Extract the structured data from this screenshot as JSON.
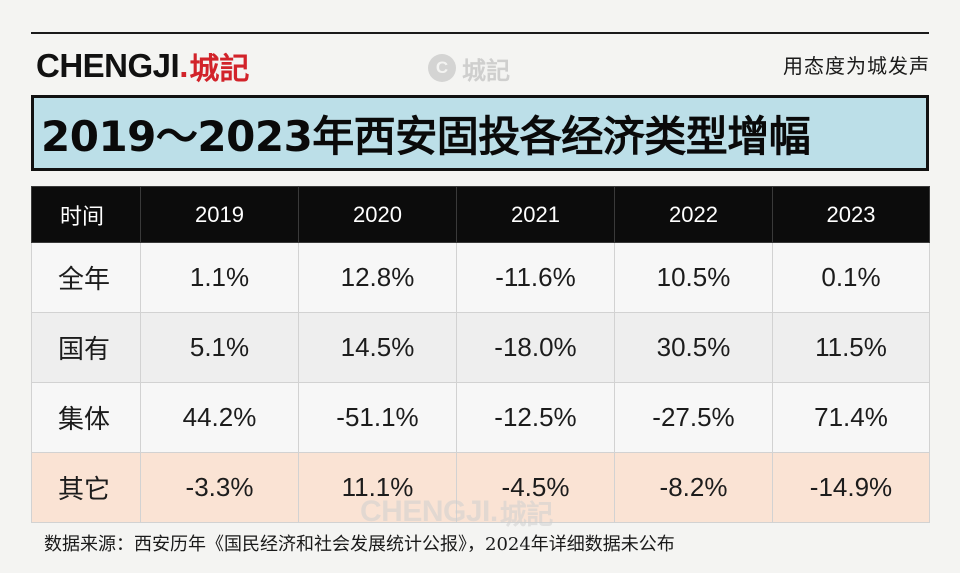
{
  "header": {
    "logo_en": "CHENGJI",
    "logo_dot": ".",
    "logo_cn": "城記",
    "watermark_letter": "C",
    "watermark_text": "城記",
    "slogan": "用态度为城发声"
  },
  "title": "2019～2023年西安固投各经济类型增幅",
  "table": {
    "columns": [
      "时间",
      "2019",
      "2020",
      "2021",
      "2022",
      "2023"
    ],
    "rows": [
      {
        "label": "全年",
        "values": [
          "1.1%",
          "12.8%",
          "-11.6%",
          "10.5%",
          "0.1%"
        ]
      },
      {
        "label": "国有",
        "values": [
          "5.1%",
          "14.5%",
          "-18.0%",
          "30.5%",
          "11.5%"
        ]
      },
      {
        "label": "集体",
        "values": [
          "44.2%",
          "-51.1%",
          "-12.5%",
          "-27.5%",
          "71.4%"
        ]
      },
      {
        "label": "其它",
        "values": [
          "-3.3%",
          "11.1%",
          "-4.5%",
          "-8.2%",
          "-14.9%"
        ]
      }
    ]
  },
  "bottom_watermark": {
    "en": "CHENGJI.",
    "cn": "城記"
  },
  "source": "数据来源：西安历年《国民经济和社会发展统计公报》，2024年详细数据未公布",
  "colors": {
    "title_bg": "#bcdfe8",
    "header_bg": "#0c0c0c",
    "highlight_row_bg": "#fae3d4",
    "brand_red": "#d2232a"
  }
}
